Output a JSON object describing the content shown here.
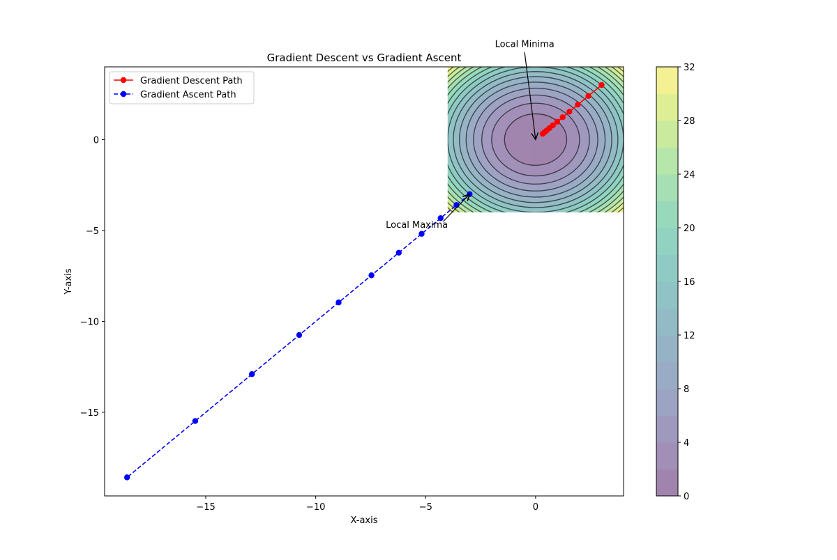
{
  "chart_data": {
    "type": "line",
    "title": "Gradient Descent vs Gradient Ascent",
    "xlabel": "X-axis",
    "ylabel": "Y-axis",
    "xlim": [
      -19.6,
      4.0
    ],
    "ylim": [
      -19.6,
      4.0
    ],
    "xticks": [
      -15,
      -10,
      -5,
      0
    ],
    "yticks": [
      -15,
      -10,
      -5,
      0
    ],
    "grid": false,
    "legend_position": "upper-left",
    "series": [
      {
        "name": "Gradient Descent Path",
        "color": "#ff0000",
        "line_style": "solid",
        "marker": "circle",
        "x": [
          3.0,
          2.4,
          1.92,
          1.536,
          1.229,
          0.983,
          0.786,
          0.629,
          0.503,
          0.403,
          0.322
        ],
        "y": [
          3.0,
          2.4,
          1.92,
          1.536,
          1.229,
          0.983,
          0.786,
          0.629,
          0.503,
          0.403,
          0.322
        ]
      },
      {
        "name": "Gradient Ascent Path",
        "color": "#0000ff",
        "line_style": "dashed",
        "marker": "circle",
        "x": [
          -3.0,
          -3.6,
          -4.32,
          -5.184,
          -6.221,
          -7.465,
          -8.958,
          -10.75,
          -12.9,
          -15.48,
          -18.58
        ],
        "y": [
          -3.0,
          -3.6,
          -4.32,
          -5.184,
          -6.221,
          -7.465,
          -8.958,
          -10.75,
          -12.9,
          -15.48,
          -18.58
        ]
      }
    ],
    "contour": {
      "function": "x^2 + y^2",
      "x_range": [
        -4,
        4
      ],
      "y_range": [
        -4,
        4
      ],
      "colormap": "viridis",
      "alpha": 0.5,
      "levels": [
        0,
        2,
        4,
        6,
        8,
        10,
        12,
        14,
        16,
        18,
        20,
        22,
        24,
        26,
        28,
        30,
        32
      ]
    },
    "colorbar": {
      "ticks": [
        0,
        4,
        8,
        12,
        16,
        20,
        24,
        28,
        32
      ],
      "range": [
        0,
        32
      ]
    },
    "annotations": [
      {
        "text": "Local Minima",
        "point_x": 0,
        "point_y": 0
      },
      {
        "text": "Local Maxima",
        "point_x": -3,
        "point_y": -3
      }
    ]
  }
}
